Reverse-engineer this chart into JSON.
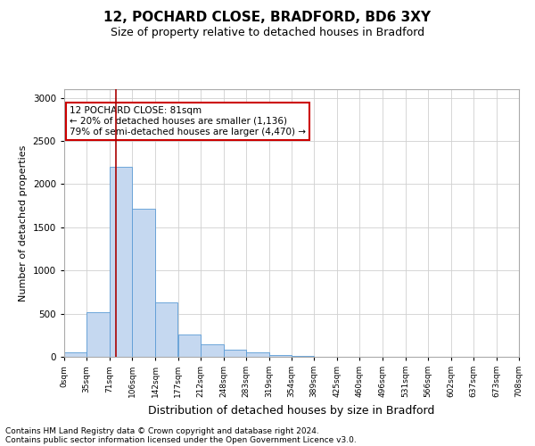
{
  "title1": "12, POCHARD CLOSE, BRADFORD, BD6 3XY",
  "title2": "Size of property relative to detached houses in Bradford",
  "xlabel": "Distribution of detached houses by size in Bradford",
  "ylabel": "Number of detached properties",
  "bar_edges": [
    0,
    35,
    71,
    106,
    142,
    177,
    212,
    248,
    283,
    319,
    354,
    389,
    425,
    460,
    496,
    531,
    566,
    602,
    637,
    673,
    708
  ],
  "bar_heights": [
    50,
    520,
    2200,
    1720,
    630,
    260,
    140,
    85,
    50,
    20,
    10,
    5,
    5,
    5,
    5,
    5,
    5,
    5,
    5,
    5
  ],
  "bar_color": "#c5d8f0",
  "bar_edge_color": "#5b9bd5",
  "vertical_line_x": 81,
  "vertical_line_color": "#aa0000",
  "annotation_text": "12 POCHARD CLOSE: 81sqm\n← 20% of detached houses are smaller (1,136)\n79% of semi-detached houses are larger (4,470) →",
  "annotation_box_color": "#ffffff",
  "annotation_box_edgecolor": "#cc0000",
  "ylim": [
    0,
    3100
  ],
  "yticks": [
    0,
    500,
    1000,
    1500,
    2000,
    2500,
    3000
  ],
  "tick_labels": [
    "0sqm",
    "35sqm",
    "71sqm",
    "106sqm",
    "142sqm",
    "177sqm",
    "212sqm",
    "248sqm",
    "283sqm",
    "319sqm",
    "354sqm",
    "389sqm",
    "425sqm",
    "460sqm",
    "496sqm",
    "531sqm",
    "566sqm",
    "602sqm",
    "637sqm",
    "673sqm",
    "708sqm"
  ],
  "footer1": "Contains HM Land Registry data © Crown copyright and database right 2024.",
  "footer2": "Contains public sector information licensed under the Open Government Licence v3.0.",
  "bg_color": "#ffffff",
  "grid_color": "#d0d0d0",
  "title1_fontsize": 11,
  "title2_fontsize": 9,
  "xlabel_fontsize": 9,
  "ylabel_fontsize": 8,
  "footer_fontsize": 6.5,
  "annot_fontsize": 7.5
}
